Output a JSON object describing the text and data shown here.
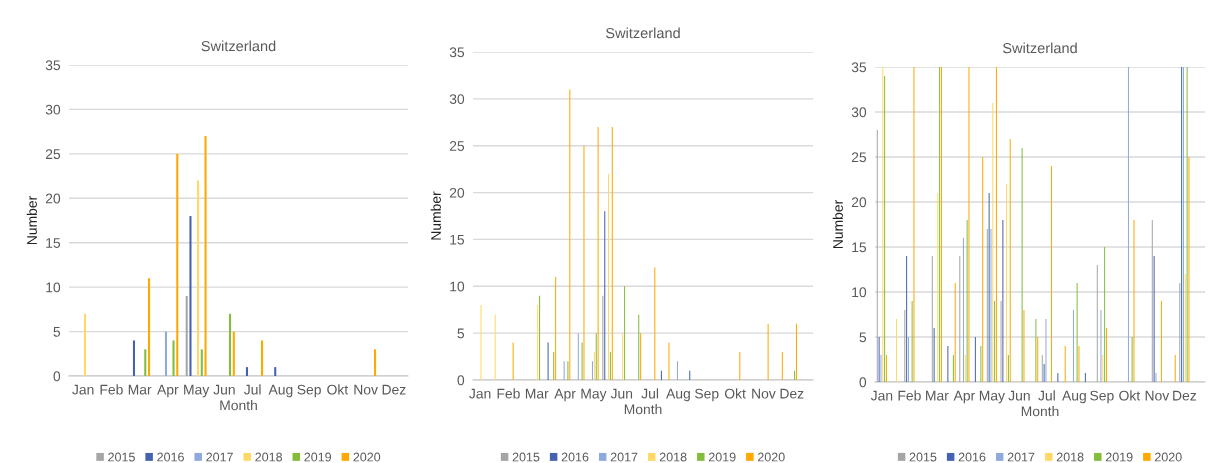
{
  "chart_data": [
    {
      "type": "bar",
      "title": "Switzerland",
      "xlabel": "Month",
      "ylabel": "Number",
      "categories": [
        "Jan",
        "Feb",
        "Mar",
        "Apr",
        "May",
        "Jun",
        "Jul",
        "Aug",
        "Sep",
        "Okt",
        "Nov",
        "Dez"
      ],
      "ylim": [
        0,
        35
      ],
      "yticks": [
        0,
        5,
        10,
        15,
        20,
        25,
        30,
        35
      ],
      "grid": "y",
      "legend": "bottom",
      "series": [
        {
          "name": "2015",
          "color": "#a5a5a5",
          "values": [
            null,
            null,
            null,
            null,
            9,
            null,
            null,
            null,
            null,
            null,
            null,
            null
          ]
        },
        {
          "name": "2016",
          "color": "#4462b0",
          "values": [
            null,
            null,
            4,
            null,
            18,
            null,
            1,
            1,
            null,
            null,
            null,
            null
          ]
        },
        {
          "name": "2017",
          "color": "#8ea9db",
          "values": [
            null,
            null,
            null,
            5,
            null,
            null,
            null,
            null,
            null,
            null,
            null,
            null
          ]
        },
        {
          "name": "2018",
          "color": "#ffd966",
          "values": [
            7,
            null,
            null,
            null,
            22,
            null,
            null,
            null,
            null,
            null,
            null,
            null
          ]
        },
        {
          "name": "2019",
          "color": "#82bd3c",
          "values": [
            null,
            null,
            3,
            4,
            3,
            7,
            null,
            null,
            null,
            null,
            null,
            null
          ]
        },
        {
          "name": "2020",
          "color": "#ffa800",
          "values": [
            null,
            null,
            11,
            25,
            27,
            5,
            4,
            null,
            null,
            null,
            3,
            null
          ]
        }
      ]
    },
    {
      "type": "bar",
      "title": "Switzerland",
      "xlabel": "Month",
      "ylabel": "Number",
      "categories": [
        "Jan",
        null,
        "Feb",
        null,
        "Mar",
        null,
        "Apr",
        null,
        "May",
        null,
        "Jun",
        null,
        "Jul",
        null,
        "Aug",
        null,
        "Sep",
        null,
        "Okt",
        null,
        "Nov",
        null,
        "Dez",
        null
      ],
      "ylim": [
        0,
        35
      ],
      "yticks": [
        0,
        5,
        10,
        15,
        20,
        25,
        30,
        35
      ],
      "grid": "y",
      "legend": "bottom",
      "series": [
        {
          "name": "2015",
          "color": "#a5a5a5",
          "values": [
            null,
            null,
            null,
            null,
            null,
            null,
            null,
            null,
            null,
            9,
            null,
            null,
            null,
            null,
            null,
            null,
            null,
            null,
            null,
            null,
            null,
            null,
            null,
            null
          ]
        },
        {
          "name": "2016",
          "color": "#4462b0",
          "values": [
            null,
            null,
            null,
            null,
            null,
            4,
            null,
            null,
            null,
            18,
            null,
            null,
            null,
            1,
            null,
            1,
            null,
            null,
            null,
            null,
            null,
            null,
            null,
            null
          ]
        },
        {
          "name": "2017",
          "color": "#8ea9db",
          "values": [
            null,
            null,
            null,
            null,
            null,
            null,
            2,
            5,
            2,
            null,
            null,
            null,
            null,
            null,
            2,
            null,
            null,
            null,
            null,
            null,
            null,
            null,
            null,
            null
          ]
        },
        {
          "name": "2018",
          "color": "#ffd966",
          "values": [
            8,
            7,
            null,
            null,
            8,
            null,
            null,
            null,
            3,
            22,
            5,
            null,
            null,
            null,
            null,
            null,
            null,
            null,
            null,
            null,
            null,
            null,
            null,
            null
          ]
        },
        {
          "name": "2019",
          "color": "#82bd3c",
          "values": [
            null,
            null,
            null,
            null,
            9,
            3,
            2,
            4,
            5,
            3,
            10,
            7,
            null,
            null,
            null,
            null,
            null,
            null,
            null,
            null,
            null,
            null,
            1,
            null
          ]
        },
        {
          "name": "2020",
          "color": "#ffa800",
          "values": [
            null,
            null,
            4,
            null,
            null,
            11,
            31,
            25,
            27,
            27,
            null,
            5,
            12,
            4,
            null,
            null,
            null,
            null,
            3,
            null,
            6,
            3,
            6,
            null
          ]
        }
      ]
    },
    {
      "type": "bar",
      "title": "Switzerland",
      "xlabel": "Month",
      "ylabel": "Number",
      "categories": [
        "Jan",
        null,
        "Feb",
        null,
        "Mar",
        null,
        "Apr",
        null,
        "May",
        null,
        "Jun",
        null,
        "Jul",
        null,
        "Aug",
        null,
        "Sep",
        null,
        "Okt",
        null,
        "Nov",
        null,
        "Dez",
        null
      ],
      "ylim": [
        0,
        35
      ],
      "yticks": [
        0,
        5,
        10,
        15,
        20,
        25,
        30,
        35
      ],
      "grid": "y",
      "legend": "bottom",
      "series": [
        {
          "name": "2015",
          "color": "#a5a5a5",
          "values": [
            28,
            null,
            8,
            null,
            14,
            null,
            14,
            null,
            17,
            9,
            null,
            null,
            3,
            null,
            null,
            null,
            13,
            null,
            null,
            null,
            18,
            null,
            11,
            null
          ]
        },
        {
          "name": "2016",
          "color": "#4462b0",
          "values": [
            5,
            null,
            14,
            null,
            6,
            4,
            null,
            5,
            21,
            18,
            null,
            null,
            2,
            1,
            null,
            1,
            null,
            null,
            null,
            null,
            14,
            null,
            35,
            null
          ]
        },
        {
          "name": "2017",
          "color": "#8ea9db",
          "values": [
            3,
            null,
            5,
            null,
            null,
            null,
            16,
            null,
            17,
            null,
            null,
            null,
            7,
            null,
            8,
            null,
            8,
            null,
            35,
            null,
            1,
            null,
            35,
            null
          ]
        },
        {
          "name": "2018",
          "color": "#ffd966",
          "values": [
            35,
            7,
            null,
            null,
            21,
            null,
            3,
            null,
            31,
            22,
            null,
            null,
            null,
            null,
            null,
            null,
            3,
            null,
            null,
            null,
            null,
            null,
            12,
            null
          ]
        },
        {
          "name": "2019",
          "color": "#82bd3c",
          "values": [
            34,
            null,
            9,
            null,
            35,
            3,
            18,
            4,
            9,
            3,
            26,
            7,
            null,
            null,
            11,
            null,
            15,
            null,
            5,
            null,
            null,
            null,
            35,
            null
          ]
        },
        {
          "name": "2020",
          "color": "#ffa800",
          "values": [
            3,
            null,
            35,
            null,
            35,
            11,
            35,
            25,
            35,
            27,
            8,
            5,
            24,
            4,
            4,
            null,
            6,
            null,
            18,
            null,
            9,
            3,
            25,
            null
          ]
        }
      ]
    }
  ]
}
